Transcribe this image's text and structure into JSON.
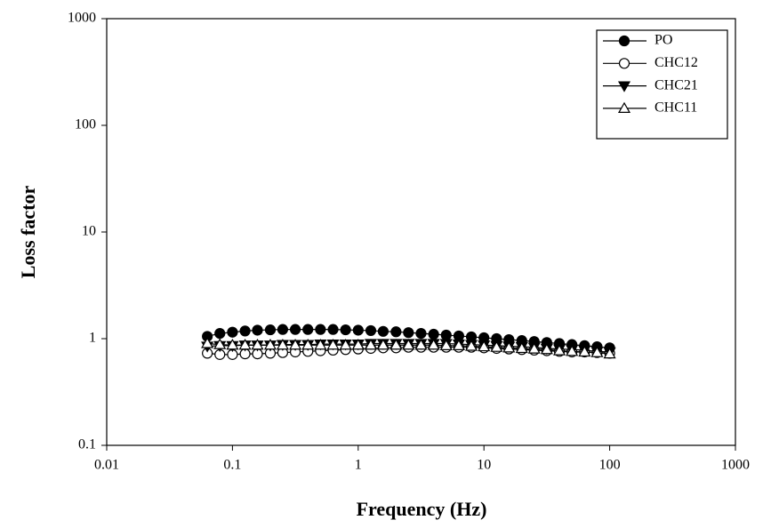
{
  "chart_data": {
    "type": "line",
    "x_label": "Frequency (Hz)",
    "y_label": "Loss factor",
    "xscale": "log",
    "yscale": "log",
    "xlim": [
      0.01,
      1000
    ],
    "xticks": [
      0.01,
      0.1,
      1,
      10,
      100,
      1000
    ],
    "ylim": [
      0.1,
      1000
    ],
    "yticks": [
      0.1,
      1,
      10,
      100,
      1000
    ],
    "legend": "upper right",
    "x": [
      0.0631,
      0.0794,
      0.1,
      0.126,
      0.158,
      0.2,
      0.251,
      0.316,
      0.398,
      0.501,
      0.631,
      0.794,
      1,
      1.26,
      1.58,
      2,
      2.51,
      3.16,
      3.98,
      5.01,
      6.31,
      7.94,
      10,
      12.6,
      15.8,
      20,
      25.1,
      31.6,
      39.8,
      50.1,
      63.1,
      79.4,
      100
    ],
    "series": [
      {
        "name": "PO",
        "color": "#000000",
        "marker": "circle",
        "filled": true,
        "values": [
          1.05,
          1.12,
          1.15,
          1.18,
          1.2,
          1.21,
          1.22,
          1.22,
          1.22,
          1.22,
          1.22,
          1.21,
          1.2,
          1.19,
          1.17,
          1.16,
          1.14,
          1.12,
          1.1,
          1.08,
          1.06,
          1.04,
          1.02,
          1.0,
          0.98,
          0.96,
          0.94,
          0.92,
          0.9,
          0.88,
          0.86,
          0.84,
          0.82
        ]
      },
      {
        "name": "CHC12",
        "color": "#000000",
        "marker": "circle",
        "filled": false,
        "values": [
          0.73,
          0.71,
          0.71,
          0.72,
          0.72,
          0.73,
          0.74,
          0.75,
          0.76,
          0.77,
          0.78,
          0.79,
          0.8,
          0.81,
          0.82,
          0.82,
          0.83,
          0.83,
          0.83,
          0.83,
          0.83,
          0.83,
          0.82,
          0.81,
          0.8,
          0.79,
          0.78,
          0.77,
          0.76,
          0.75,
          0.75,
          0.74,
          0.73
        ]
      },
      {
        "name": "CHC21",
        "color": "#000000",
        "marker": "triangle-down",
        "filled": true,
        "values": [
          0.85,
          0.86,
          0.86,
          0.87,
          0.87,
          0.87,
          0.88,
          0.88,
          0.88,
          0.89,
          0.89,
          0.89,
          0.89,
          0.9,
          0.9,
          0.9,
          0.9,
          0.9,
          0.9,
          0.9,
          0.89,
          0.88,
          0.87,
          0.86,
          0.85,
          0.84,
          0.83,
          0.81,
          0.8,
          0.79,
          0.78,
          0.76,
          0.75
        ]
      },
      {
        "name": "CHC11",
        "color": "#000000",
        "marker": "triangle-up",
        "filled": false,
        "values": [
          0.9,
          0.88,
          0.87,
          0.87,
          0.87,
          0.87,
          0.87,
          0.87,
          0.87,
          0.87,
          0.87,
          0.87,
          0.87,
          0.87,
          0.87,
          0.87,
          0.87,
          0.87,
          0.87,
          0.86,
          0.86,
          0.85,
          0.84,
          0.83,
          0.82,
          0.81,
          0.8,
          0.79,
          0.77,
          0.76,
          0.75,
          0.74,
          0.72
        ]
      }
    ]
  }
}
